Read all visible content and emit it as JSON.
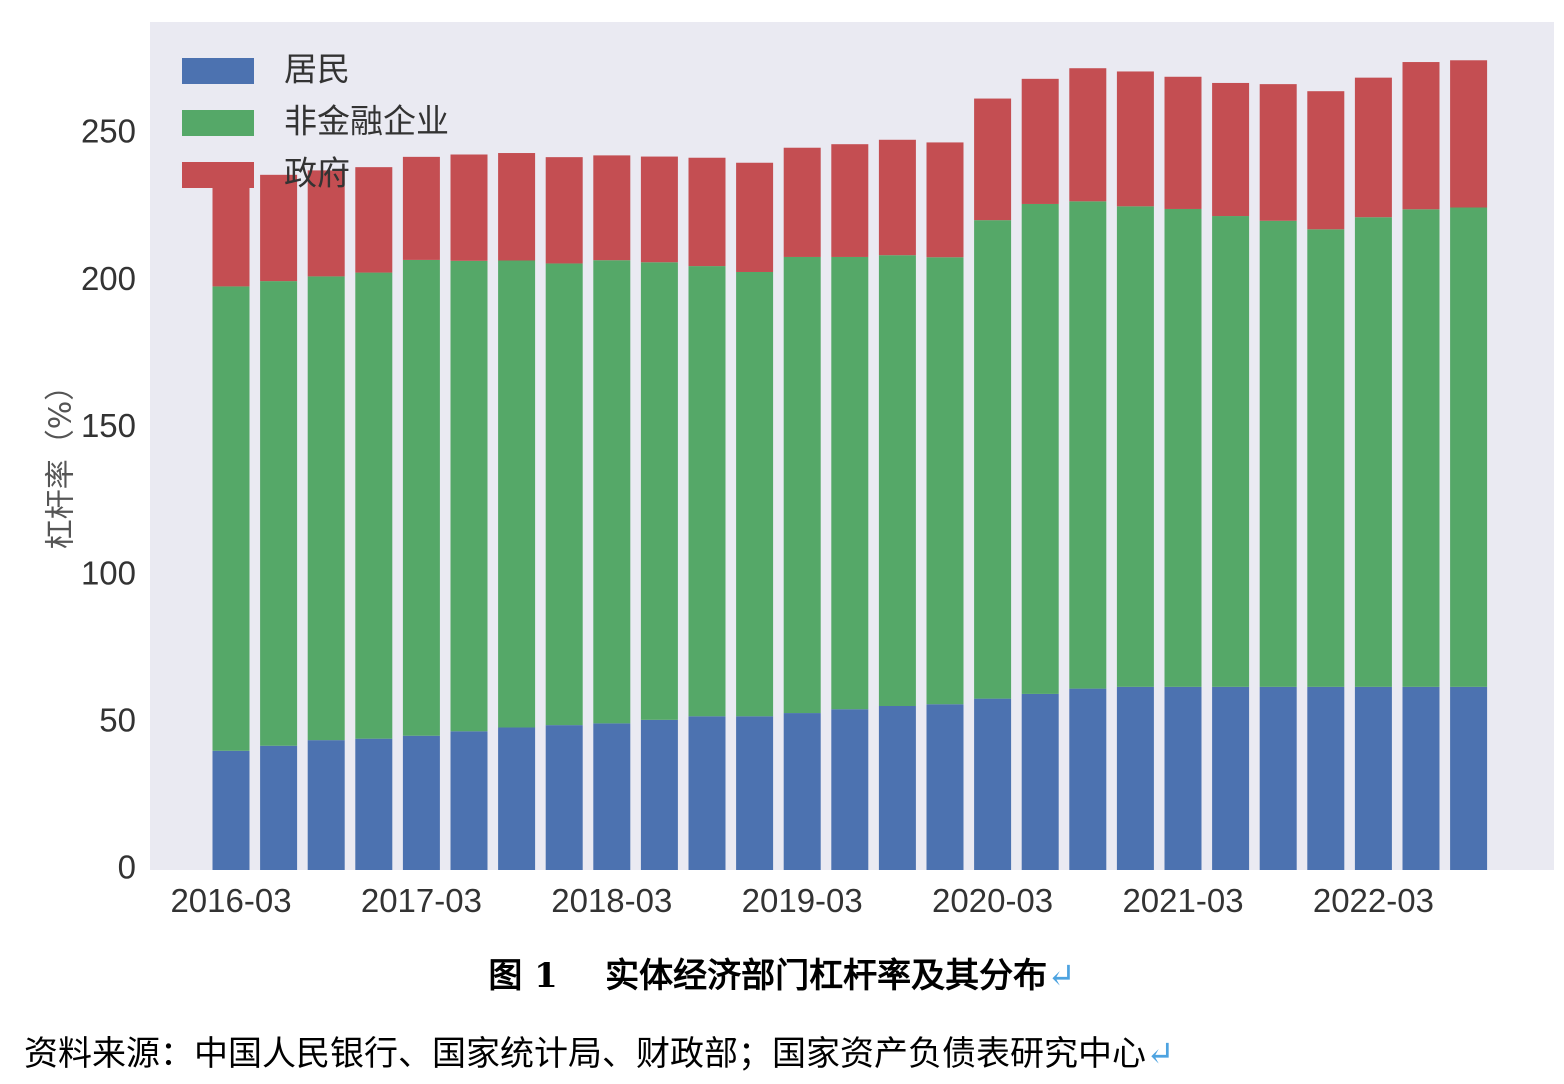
{
  "chart_data": {
    "type": "bar",
    "stacked": true,
    "ylabel": "杠杆率（%）",
    "ylim": [
      0,
      288
    ],
    "yticks": [
      0,
      50,
      100,
      150,
      200,
      250
    ],
    "xtick_labels": [
      "2016-03",
      "2017-03",
      "2018-03",
      "2019-03",
      "2020-03",
      "2021-03",
      "2022-03"
    ],
    "xtick_every": 4,
    "categories": [
      "2016-03",
      "2016-06",
      "2016-09",
      "2016-12",
      "2017-03",
      "2017-06",
      "2017-09",
      "2017-12",
      "2018-03",
      "2018-06",
      "2018-09",
      "2018-12",
      "2019-03",
      "2019-06",
      "2019-09",
      "2019-12",
      "2020-03",
      "2020-06",
      "2020-09",
      "2020-12",
      "2021-03",
      "2021-06",
      "2021-09",
      "2021-12",
      "2022-03",
      "2022-06",
      "2022-09"
    ],
    "series": [
      {
        "name": "居民",
        "color": "#4c72b0",
        "values": [
          40.5,
          42.2,
          44.1,
          44.6,
          45.6,
          47.1,
          48.4,
          49.2,
          49.8,
          51.0,
          52.2,
          52.2,
          53.3,
          54.6,
          55.7,
          56.3,
          58.2,
          59.8,
          61.6,
          62.2,
          62.2,
          62.2,
          62.2,
          62.2,
          62.2,
          62.2,
          62.2
        ]
      },
      {
        "name": "非金融企业",
        "color": "#55a868",
        "values": [
          157.7,
          157.8,
          157.5,
          158.3,
          161.6,
          159.8,
          158.6,
          156.8,
          157.3,
          155.4,
          152.9,
          150.9,
          154.9,
          153.6,
          153.1,
          151.8,
          162.5,
          166.4,
          165.5,
          163.2,
          162.3,
          159.9,
          158.3,
          155.4,
          159.5,
          162.2,
          162.8
        ]
      },
      {
        "name": "政府",
        "color": "#c44e52",
        "values": [
          36.2,
          36.1,
          36.0,
          35.8,
          35.0,
          36.1,
          36.5,
          36.1,
          35.6,
          35.9,
          36.8,
          37.1,
          37.1,
          38.3,
          39.2,
          39.0,
          41.3,
          42.5,
          45.2,
          45.8,
          44.9,
          45.2,
          46.4,
          46.9,
          47.4,
          50.0,
          50.0
        ]
      }
    ],
    "grid": false,
    "legend_position": "top-left"
  },
  "caption": {
    "label": "图 1",
    "title": "实体经济部门杠杆率及其分布",
    "mark": "↵"
  },
  "source": {
    "text": "资料来源：中国人民银行、国家统计局、财政部；国家资产负债表研究中心",
    "mark": "↵"
  },
  "colors": {
    "plot_background": "#eaeaf2",
    "paragraph_mark": "#4da3e0"
  }
}
